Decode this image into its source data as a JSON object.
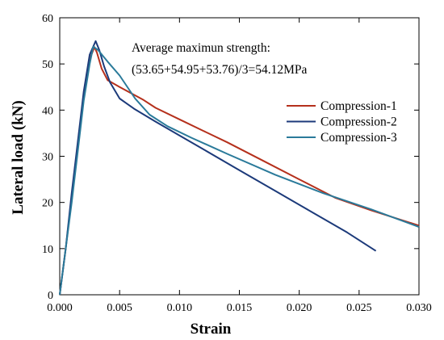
{
  "chart_data": {
    "type": "line",
    "xlabel": "Strain",
    "ylabel": "Lateral load (kN)",
    "xlim": [
      0.0,
      0.03
    ],
    "ylim": [
      0,
      60
    ],
    "x_ticks": [
      "0.000",
      "0.005",
      "0.010",
      "0.015",
      "0.020",
      "0.025",
      "0.030"
    ],
    "y_ticks": [
      "0",
      "10",
      "20",
      "30",
      "40",
      "50",
      "60"
    ],
    "grid": false,
    "legend_position": "right",
    "annotation": {
      "line1": "Average maximun strength:",
      "line2": "(53.65+54.95+53.76)/3=54.12MPa"
    },
    "series": [
      {
        "name": "Compression-1",
        "color": "#b5301c",
        "points": [
          [
            0,
            0
          ],
          [
            0.0005,
            10
          ],
          [
            0.001,
            21
          ],
          [
            0.0015,
            32
          ],
          [
            0.002,
            43
          ],
          [
            0.0025,
            51
          ],
          [
            0.0029,
            53.65
          ],
          [
            0.0031,
            52.5
          ],
          [
            0.0035,
            49
          ],
          [
            0.004,
            46.5
          ],
          [
            0.005,
            45
          ],
          [
            0.006,
            43.6
          ],
          [
            0.007,
            42.2
          ],
          [
            0.008,
            40.5
          ],
          [
            0.01,
            38
          ],
          [
            0.012,
            35.5
          ],
          [
            0.014,
            33
          ],
          [
            0.017,
            29
          ],
          [
            0.02,
            25
          ],
          [
            0.023,
            21
          ],
          [
            0.026,
            18.3
          ],
          [
            0.03,
            15
          ]
        ]
      },
      {
        "name": "Compression-2",
        "color": "#1c3a7a",
        "points": [
          [
            0,
            0
          ],
          [
            0.0005,
            10
          ],
          [
            0.001,
            22
          ],
          [
            0.0015,
            33
          ],
          [
            0.002,
            44
          ],
          [
            0.0025,
            52
          ],
          [
            0.003,
            54.95
          ],
          [
            0.0033,
            53
          ],
          [
            0.0037,
            49.5
          ],
          [
            0.0042,
            46
          ],
          [
            0.005,
            42.5
          ],
          [
            0.0062,
            40.3
          ],
          [
            0.008,
            37.5
          ],
          [
            0.01,
            34.5
          ],
          [
            0.012,
            31.5
          ],
          [
            0.015,
            27
          ],
          [
            0.018,
            22.5
          ],
          [
            0.021,
            18
          ],
          [
            0.024,
            13.5
          ],
          [
            0.0264,
            9.5
          ]
        ]
      },
      {
        "name": "Compression-3",
        "color": "#2a7a9a",
        "points": [
          [
            0,
            0
          ],
          [
            0.0005,
            10
          ],
          [
            0.001,
            20
          ],
          [
            0.0015,
            31
          ],
          [
            0.002,
            42
          ],
          [
            0.0025,
            50
          ],
          [
            0.0028,
            53.76
          ],
          [
            0.0032,
            53
          ],
          [
            0.004,
            50.5
          ],
          [
            0.005,
            47.5
          ],
          [
            0.0063,
            42.5
          ],
          [
            0.0075,
            39
          ],
          [
            0.009,
            36.5
          ],
          [
            0.011,
            34
          ],
          [
            0.014,
            30.5
          ],
          [
            0.018,
            26
          ],
          [
            0.022,
            22
          ],
          [
            0.026,
            18.5
          ],
          [
            0.03,
            14.7
          ]
        ]
      }
    ]
  }
}
